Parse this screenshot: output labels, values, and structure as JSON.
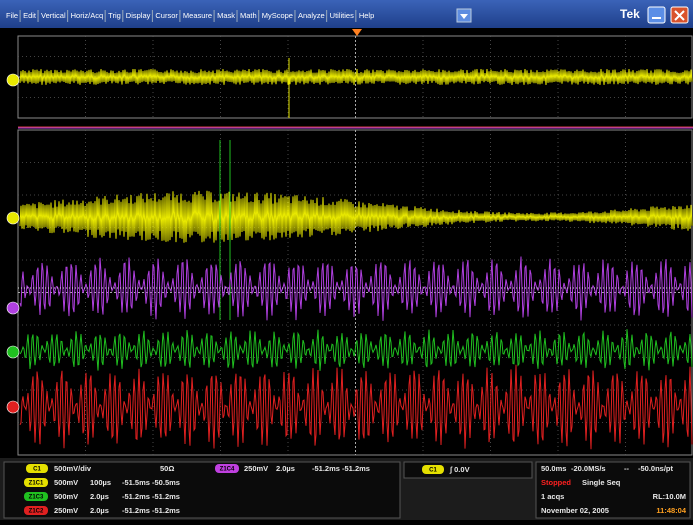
{
  "menu": {
    "items": [
      "File",
      "Edit",
      "Vertical",
      "Horiz/Acq",
      "Trig",
      "Display",
      "Cursor",
      "Measure",
      "Mask",
      "Math",
      "MyScope",
      "Analyze",
      "Utilities",
      "Help"
    ],
    "brand": "Tek"
  },
  "readouts": {
    "channel": {
      "badge": "C1",
      "scale": "500mV/div",
      "impedance": "50Ω"
    },
    "zoom_top": {
      "badge": "Z1C4",
      "scale": "250mV",
      "time": "2.0µs",
      "range": "-51.2ms -51.2ms"
    },
    "zooms": [
      {
        "badge": "Z1C1",
        "scale": "500mV",
        "time": "100µs",
        "range": "-51.5ms -50.5ms"
      },
      {
        "badge": "Z1C3",
        "scale": "500mV",
        "time": "2.0µs",
        "range": "-51.2ms -51.2ms"
      },
      {
        "badge": "Z1C2",
        "scale": "250mV",
        "time": "2.0µs",
        "range": "-51.2ms -51.2ms"
      }
    ],
    "trigger": {
      "badge": "C1",
      "level": "∫ 0.0V"
    },
    "acquisition": {
      "timebase": "50.0ms",
      "rate": "-20.0MS/s",
      "separator": "--",
      "resolution": "-50.0ns/pt",
      "state": "Stopped",
      "mode": "Single Seq",
      "acqs": "1 acqs",
      "record": "RL:10.0M",
      "date": "November 02, 2005",
      "time": "11:48:04"
    }
  }
}
